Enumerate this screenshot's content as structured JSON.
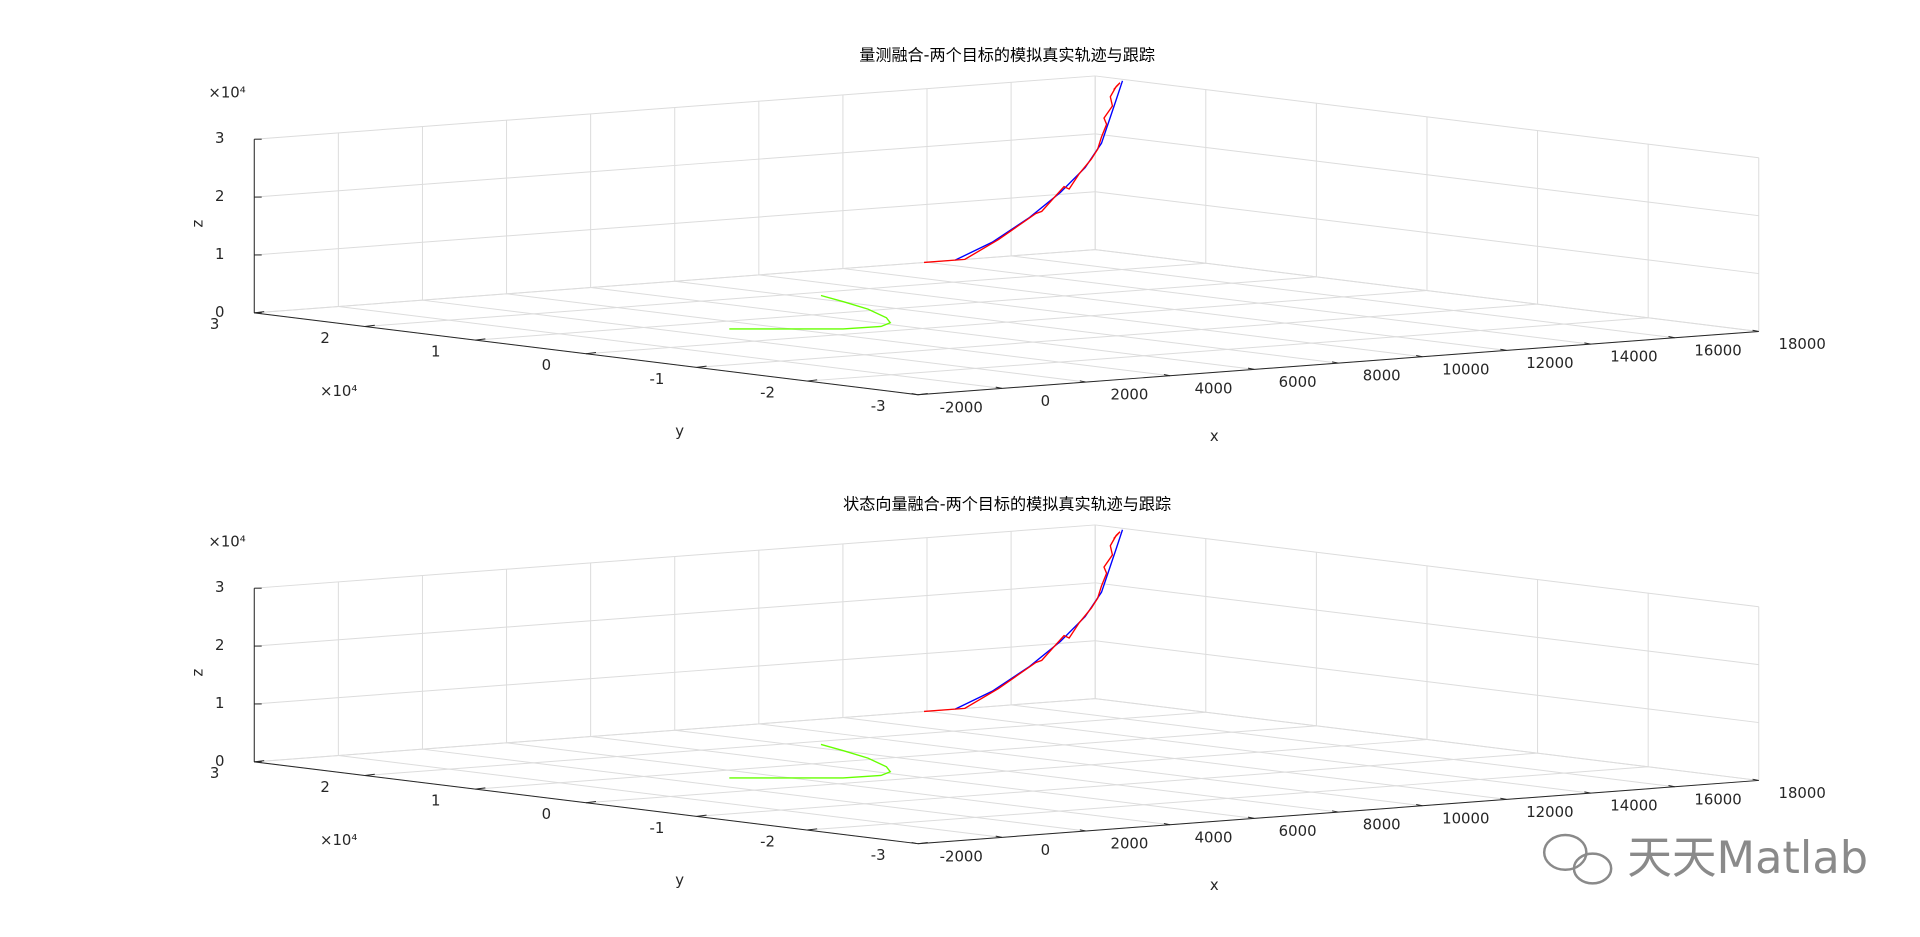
{
  "chart_data": [
    {
      "type": "line3d",
      "title": "量测融合-两个目标的模拟真实轨迹与跟踪",
      "xlabel": "x",
      "ylabel": "y",
      "zlabel": "z",
      "y_multiplier": "×10⁴",
      "z_multiplier": "×10⁴",
      "xlim": [
        -2000,
        18000
      ],
      "ylim": [
        -3,
        3
      ],
      "zlim": [
        0,
        3
      ],
      "xticks": [
        -2000,
        0,
        2000,
        4000,
        6000,
        8000,
        10000,
        12000,
        14000,
        16000,
        18000
      ],
      "yticks": [
        -3,
        -2,
        -1,
        0,
        1,
        2,
        3
      ],
      "zticks": [
        0,
        1,
        2,
        3
      ],
      "grid": true,
      "series": [
        {
          "color": "#0000ff",
          "x": [
            14670,
            15550,
            16440,
            17170,
            17760,
            18150,
            18350,
            18500,
            18650
          ],
          "y": [
            3,
            3,
            3,
            3,
            3,
            3,
            3,
            3,
            3
          ],
          "z": [
            0,
            0.26,
            0.64,
            1.03,
            1.43,
            1.83,
            2.25,
            2.56,
            2.88
          ]
        },
        {
          "color": "#ff0000",
          "x": [
            13930,
            14820,
            14900,
            15700,
            16590,
            16730,
            17260,
            17380,
            17620,
            17910,
            18060,
            18150,
            18270,
            18210,
            18410,
            18360,
            18500,
            18590,
            18440
          ],
          "y": [
            3,
            3,
            3,
            3,
            3,
            3,
            3,
            3,
            3,
            3,
            3,
            3,
            3,
            3,
            3,
            3,
            3,
            3,
            3
          ],
          "z": [
            0,
            0,
            0,
            0.3,
            0.7,
            0.73,
            1.13,
            1.08,
            1.33,
            1.57,
            1.73,
            1.94,
            2.15,
            2.26,
            2.46,
            2.62,
            2.79,
            2.85,
            2.74
          ]
        },
        {
          "color": "#66ff00",
          "x": [
            8454,
            8040,
            7520,
            6750,
            6210,
            5620,
            4770,
            4040,
            3090
          ],
          "y": [
            1.85,
            1.49,
            1.07,
            0.61,
            0.37,
            0.23,
            0.25,
            0.42,
            0.64
          ],
          "z": [
            0,
            0,
            0,
            0,
            0,
            0,
            0,
            0,
            0
          ]
        }
      ]
    },
    {
      "type": "line3d",
      "title": "状态向量融合-两个目标的模拟真实轨迹与跟踪",
      "xlabel": "x",
      "ylabel": "y",
      "zlabel": "z",
      "y_multiplier": "×10⁴",
      "z_multiplier": "×10⁴",
      "xlim": [
        -2000,
        18000
      ],
      "ylim": [
        -3,
        3
      ],
      "zlim": [
        0,
        3
      ],
      "xticks": [
        -2000,
        0,
        2000,
        4000,
        6000,
        8000,
        10000,
        12000,
        14000,
        16000,
        18000
      ],
      "yticks": [
        -3,
        -2,
        -1,
        0,
        1,
        2,
        3
      ],
      "zticks": [
        0,
        1,
        2,
        3
      ],
      "grid": true,
      "series": [
        {
          "color": "#0000ff",
          "x": [
            14670,
            15550,
            16440,
            17170,
            17760,
            18150,
            18350,
            18500,
            18650
          ],
          "y": [
            3,
            3,
            3,
            3,
            3,
            3,
            3,
            3,
            3
          ],
          "z": [
            0,
            0.26,
            0.64,
            1.03,
            1.43,
            1.83,
            2.25,
            2.56,
            2.88
          ]
        },
        {
          "color": "#ff0000",
          "x": [
            13930,
            14820,
            14900,
            15700,
            16590,
            16730,
            17260,
            17380,
            17620,
            17910,
            18060,
            18150,
            18270,
            18210,
            18410,
            18360,
            18500,
            18590,
            18440
          ],
          "y": [
            3,
            3,
            3,
            3,
            3,
            3,
            3,
            3,
            3,
            3,
            3,
            3,
            3,
            3,
            3,
            3,
            3,
            3,
            3
          ],
          "z": [
            0,
            0,
            0,
            0.3,
            0.7,
            0.73,
            1.13,
            1.08,
            1.33,
            1.57,
            1.73,
            1.94,
            2.15,
            2.26,
            2.46,
            2.62,
            2.79,
            2.85,
            2.74
          ]
        },
        {
          "color": "#66ff00",
          "x": [
            8454,
            8040,
            7520,
            6750,
            6210,
            5620,
            4770,
            4040,
            3090
          ],
          "y": [
            1.85,
            1.49,
            1.07,
            0.61,
            0.37,
            0.23,
            0.25,
            0.42,
            0.64
          ],
          "z": [
            0,
            0,
            0,
            0,
            0,
            0,
            0,
            0,
            0
          ]
        }
      ]
    }
  ],
  "watermark": "天天Matlab"
}
